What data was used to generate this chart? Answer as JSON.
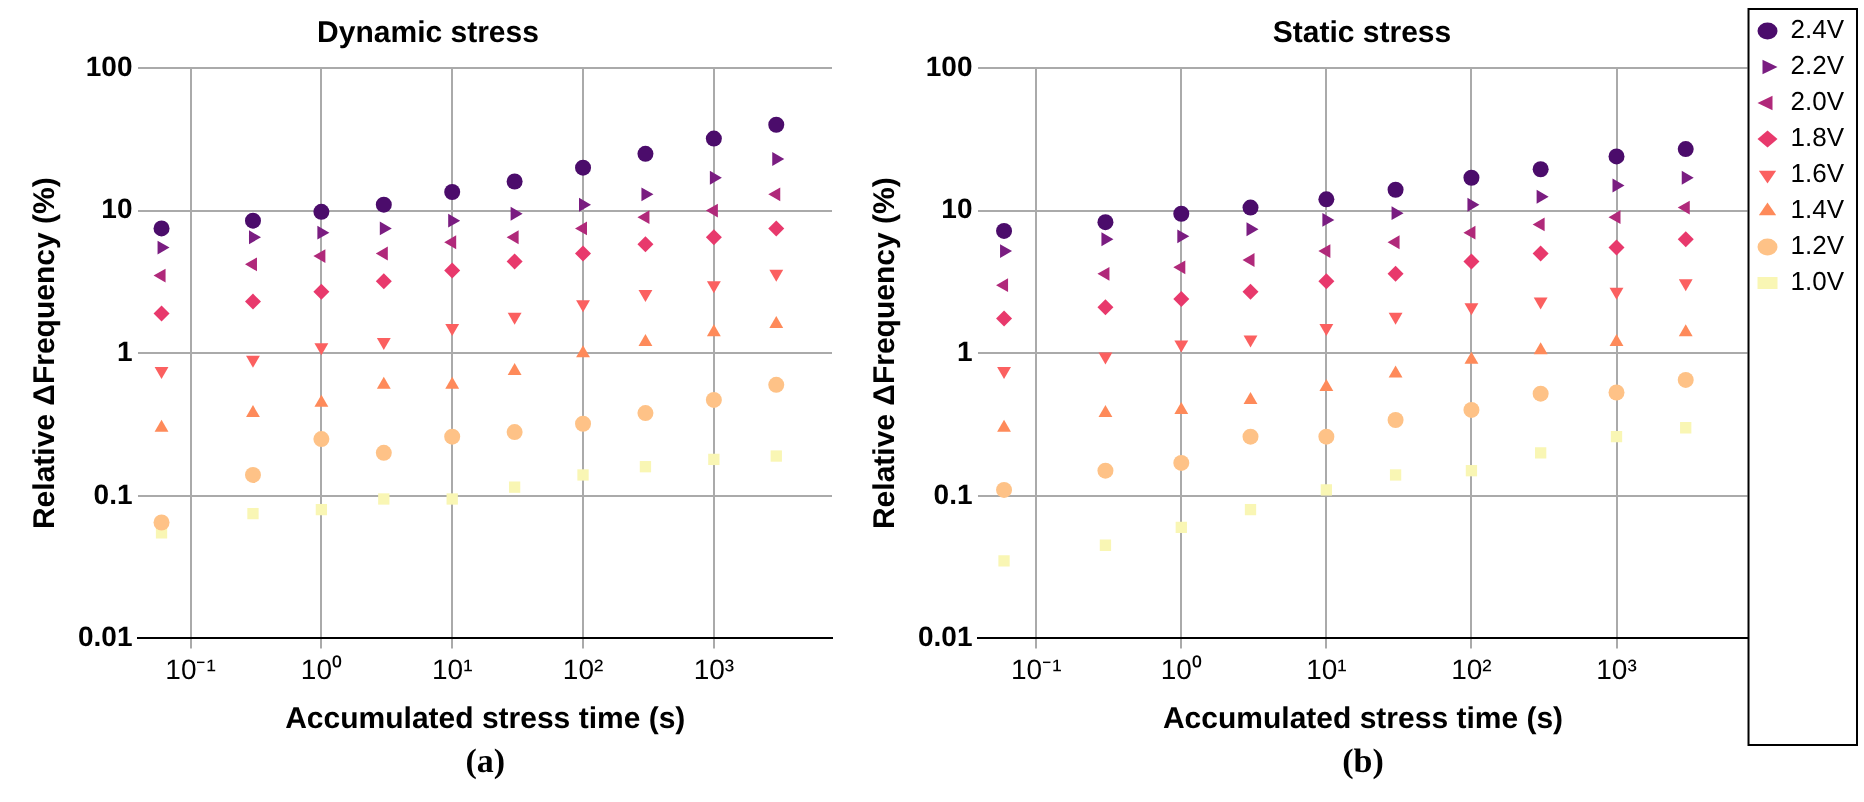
{
  "chart_data": [
    {
      "type": "scatter",
      "title": "Dynamic stress",
      "xlabel": "Accumulated stress time (s)",
      "ylabel": "Relative ΔFrequency (%)",
      "annotations": [
        "(a)"
      ],
      "x": [
        0.06,
        0.3,
        1,
        3,
        10,
        30,
        100,
        300,
        1000,
        3000
      ],
      "series": [
        {
          "color": "#4b0c6b",
          "marker": "circle",
          "values": [
            7.5,
            8.5,
            9.8,
            11,
            13.5,
            16,
            20,
            25,
            32,
            40
          ]
        },
        {
          "color": "#7a1d81",
          "marker": "triangle-right",
          "values": [
            5.5,
            6.5,
            7,
            7.5,
            8.5,
            9.5,
            11,
            13,
            17,
            23
          ]
        },
        {
          "color": "#b0297a",
          "marker": "triangle-left",
          "values": [
            3.5,
            4.2,
            4.8,
            5,
            6,
            6.5,
            7.5,
            9,
            10,
            13
          ]
        },
        {
          "color": "#e8396c",
          "marker": "diamond",
          "values": [
            1.9,
            2.3,
            2.7,
            3.2,
            3.8,
            4.4,
            5,
            5.8,
            6.5,
            7.5
          ]
        },
        {
          "color": "#fb6060",
          "marker": "triangle-down",
          "values": [
            0.75,
            0.9,
            1.1,
            1.2,
            1.5,
            1.8,
            2.2,
            2.6,
            3,
            3.6
          ]
        },
        {
          "color": "#fe8a5a",
          "marker": "triangle",
          "values": [
            0.3,
            0.38,
            0.45,
            0.6,
            0.6,
            0.75,
            1,
            1.2,
            1.4,
            1.6
          ]
        },
        {
          "color": "#fec287",
          "marker": "circle",
          "values": [
            0.065,
            0.14,
            0.25,
            0.2,
            0.26,
            0.28,
            0.32,
            0.38,
            0.47,
            0.6
          ]
        },
        {
          "color": "#f9f6b4",
          "marker": "square",
          "values": [
            0.055,
            0.075,
            0.08,
            0.095,
            0.095,
            0.115,
            0.14,
            0.16,
            0.18,
            0.19
          ]
        }
      ],
      "log": "xy",
      "xlim": [
        0.04,
        8000
      ],
      "ylim": [
        0.01,
        100
      ],
      "xticks": [
        {
          "value": 0.1,
          "label": "10⁻¹"
        },
        {
          "value": 1,
          "label": "10⁰"
        },
        {
          "value": 10,
          "label": "10¹"
        },
        {
          "value": 100,
          "label": "10²"
        },
        {
          "value": 1000,
          "label": "10³"
        }
      ],
      "yticks": [
        0.01,
        0.1,
        1,
        10,
        100
      ],
      "grid": true,
      "legend": false
    },
    {
      "type": "scatter",
      "title": "Static stress",
      "xlabel": "Accumulated stress time (s)",
      "ylabel": "Relative ΔFrequency (%)",
      "annotations": [
        "(b)"
      ],
      "x": [
        0.06,
        0.3,
        1,
        3,
        10,
        30,
        100,
        300,
        1000,
        3000
      ],
      "series": [
        {
          "name": "2.4V",
          "color": "#4b0c6b",
          "marker": "circle",
          "values": [
            7.2,
            8.3,
            9.5,
            10.5,
            12,
            14,
            17,
            19.5,
            24,
            27
          ]
        },
        {
          "name": "2.2V",
          "color": "#7a1d81",
          "marker": "triangle-right",
          "values": [
            5.2,
            6.3,
            6.6,
            7.4,
            8.6,
            9.6,
            11,
            12.5,
            15,
            17
          ]
        },
        {
          "name": "2.0V",
          "color": "#b0297a",
          "marker": "triangle-left",
          "values": [
            3,
            3.6,
            4,
            4.5,
            5.2,
            6,
            7,
            8,
            9,
            10.5
          ]
        },
        {
          "name": "1.8V",
          "color": "#e8396c",
          "marker": "diamond",
          "values": [
            1.75,
            2.1,
            2.4,
            2.7,
            3.2,
            3.6,
            4.4,
            5,
            5.5,
            6.3
          ]
        },
        {
          "name": "1.6V",
          "color": "#fb6060",
          "marker": "triangle-down",
          "values": [
            0.75,
            0.95,
            1.15,
            1.25,
            1.5,
            1.8,
            2.1,
            2.3,
            2.7,
            3.1
          ]
        },
        {
          "name": "1.4V",
          "color": "#fe8a5a",
          "marker": "triangle",
          "values": [
            0.3,
            0.38,
            0.4,
            0.47,
            0.58,
            0.72,
            0.9,
            1.05,
            1.2,
            1.4
          ]
        },
        {
          "name": "1.2V",
          "color": "#fec287",
          "marker": "circle",
          "values": [
            0.11,
            0.15,
            0.17,
            0.26,
            0.26,
            0.34,
            0.4,
            0.52,
            0.53,
            0.65
          ]
        },
        {
          "name": "1.0V",
          "color": "#f9f6b4",
          "marker": "square",
          "values": [
            0.035,
            0.045,
            0.06,
            0.08,
            0.11,
            0.14,
            0.15,
            0.2,
            0.26,
            0.3
          ]
        }
      ],
      "log": "xy",
      "xlim": [
        0.04,
        8000
      ],
      "ylim": [
        0.01,
        100
      ],
      "xticks": [
        {
          "value": 0.1,
          "label": "10⁻¹"
        },
        {
          "value": 1,
          "label": "10⁰"
        },
        {
          "value": 10,
          "label": "10¹"
        },
        {
          "value": 100,
          "label": "10²"
        },
        {
          "value": 1000,
          "label": "10³"
        }
      ],
      "yticks": [
        0.01,
        0.1,
        1,
        10,
        100
      ],
      "grid": true,
      "legend": "right"
    }
  ]
}
